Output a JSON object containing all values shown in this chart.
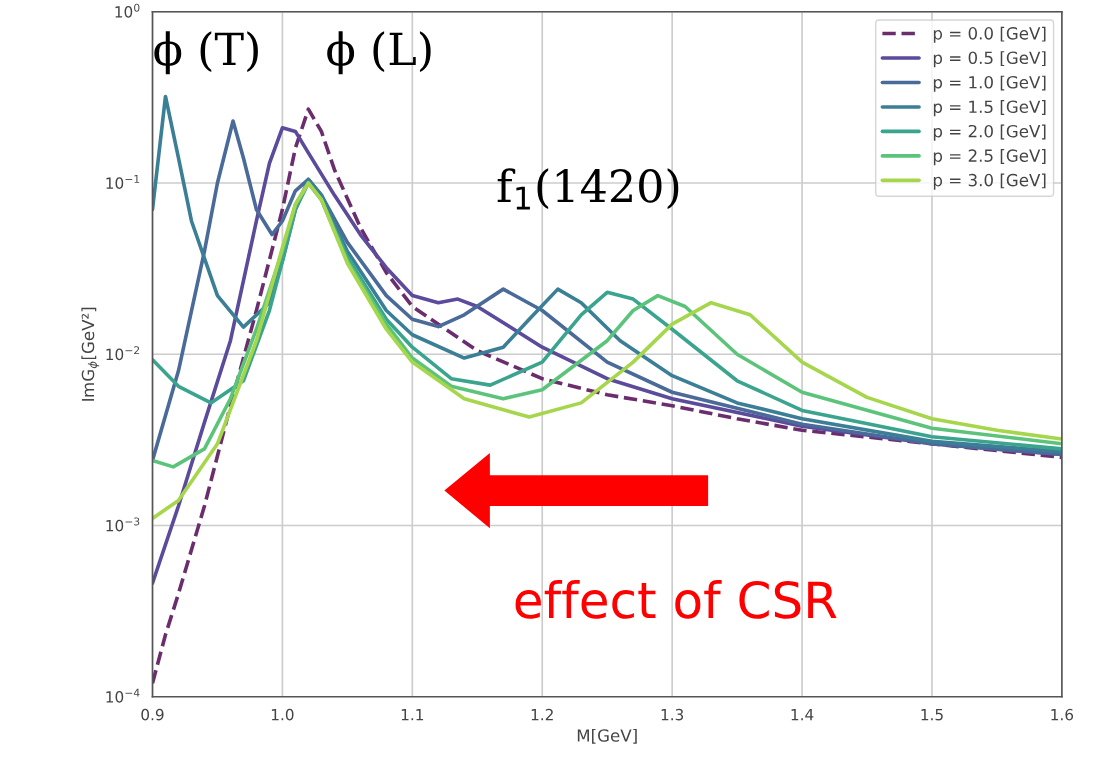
{
  "chart_data": {
    "type": "line",
    "xlabel": "M[GeV]",
    "ylabel": "ImG$_{ϕ}$[GeV²]",
    "log": "y",
    "grid": true,
    "legend": "top right",
    "line_style": "solid",
    "marker": "none",
    "xlim": [
      0.9,
      1.6
    ],
    "xticks": [
      0.9,
      {
        "value": 1.0,
        "label": "1.0"
      },
      1.1,
      1.2,
      1.3,
      1.4,
      1.5,
      1.6
    ],
    "ylim": [
      0.0001,
      1
    ],
    "yticks": [
      {
        "value": 0.0001,
        "label": "10$^{−4}$"
      },
      {
        "value": 0.001,
        "label": "10$^{−3}$"
      },
      {
        "value": 0.01,
        "label": "10$^{−2}$"
      },
      {
        "value": 0.1,
        "label": "10$^{−1}$"
      },
      {
        "value": 1,
        "label": "10$^{0}$"
      }
    ],
    "series": [
      {
        "name": "p = 0.0 [GeV]",
        "color": "#6b2d6e",
        "line_style": "dashed",
        "x": [
          0.9,
          0.91,
          0.92,
          0.94,
          0.96,
          0.98,
          1.0,
          1.01,
          1.02,
          1.03,
          1.04,
          1.06,
          1.08,
          1.1,
          1.15,
          1.2,
          1.25,
          1.3,
          1.35,
          1.4,
          1.5,
          1.6
        ],
        "values": [
          0.00012,
          0.00023,
          0.0004,
          0.0013,
          0.005,
          0.018,
          0.07,
          0.16,
          0.27,
          0.2,
          0.12,
          0.055,
          0.03,
          0.019,
          0.0105,
          0.0072,
          0.0058,
          0.005,
          0.0042,
          0.0036,
          0.003,
          0.0025
        ]
      },
      {
        "name": "p = 0.5 [GeV]",
        "color": "#5c4a9b",
        "x": [
          0.9,
          0.92,
          0.94,
          0.96,
          0.98,
          0.99,
          1.0,
          1.01,
          1.02,
          1.04,
          1.06,
          1.08,
          1.1,
          1.12,
          1.135,
          1.15,
          1.2,
          1.25,
          1.3,
          1.4,
          1.5,
          1.6
        ],
        "values": [
          0.00046,
          0.0013,
          0.004,
          0.012,
          0.06,
          0.13,
          0.21,
          0.2,
          0.15,
          0.085,
          0.05,
          0.032,
          0.022,
          0.02,
          0.021,
          0.019,
          0.011,
          0.0072,
          0.0055,
          0.0038,
          0.003,
          0.0026
        ]
      },
      {
        "name": "p = 1.0 [GeV]",
        "color": "#4a6a9a",
        "x": [
          0.9,
          0.92,
          0.94,
          0.95,
          0.962,
          0.97,
          0.98,
          0.992,
          1.0,
          1.01,
          1.02,
          1.03,
          1.05,
          1.08,
          1.1,
          1.12,
          1.14,
          1.17,
          1.2,
          1.25,
          1.3,
          1.4,
          1.5,
          1.6
        ],
        "values": [
          0.0024,
          0.008,
          0.04,
          0.1,
          0.23,
          0.14,
          0.07,
          0.05,
          0.06,
          0.09,
          0.105,
          0.085,
          0.045,
          0.022,
          0.016,
          0.0145,
          0.017,
          0.024,
          0.018,
          0.009,
          0.006,
          0.0039,
          0.003,
          0.0026
        ]
      },
      {
        "name": "p = 1.5 [GeV]",
        "color": "#3a7f96",
        "x": [
          0.9,
          0.91,
          0.92,
          0.93,
          0.95,
          0.97,
          0.99,
          1.0,
          1.01,
          1.02,
          1.03,
          1.05,
          1.08,
          1.1,
          1.14,
          1.17,
          1.19,
          1.212,
          1.23,
          1.26,
          1.3,
          1.35,
          1.4,
          1.5,
          1.6
        ],
        "values": [
          0.07,
          0.32,
          0.14,
          0.06,
          0.022,
          0.0144,
          0.02,
          0.035,
          0.07,
          0.105,
          0.085,
          0.04,
          0.018,
          0.013,
          0.0095,
          0.011,
          0.016,
          0.024,
          0.02,
          0.012,
          0.0075,
          0.0052,
          0.0042,
          0.0031,
          0.0027
        ]
      },
      {
        "name": "p = 2.0 [GeV]",
        "color": "#3aa48f",
        "x": [
          0.9,
          0.92,
          0.945,
          0.97,
          0.99,
          1.0,
          1.01,
          1.02,
          1.03,
          1.05,
          1.08,
          1.1,
          1.13,
          1.16,
          1.2,
          1.23,
          1.25,
          1.27,
          1.3,
          1.35,
          1.4,
          1.5,
          1.6
        ],
        "values": [
          0.0093,
          0.0065,
          0.0052,
          0.007,
          0.018,
          0.035,
          0.07,
          0.1,
          0.08,
          0.037,
          0.016,
          0.011,
          0.0072,
          0.0066,
          0.009,
          0.017,
          0.023,
          0.021,
          0.014,
          0.007,
          0.0047,
          0.0033,
          0.0028
        ]
      },
      {
        "name": "p = 2.5 [GeV]",
        "color": "#5cc47a",
        "x": [
          0.9,
          0.916,
          0.94,
          0.96,
          0.98,
          1.0,
          1.01,
          1.02,
          1.03,
          1.05,
          1.08,
          1.1,
          1.13,
          1.17,
          1.2,
          1.25,
          1.27,
          1.289,
          1.31,
          1.35,
          1.4,
          1.5,
          1.6
        ],
        "values": [
          0.0024,
          0.0022,
          0.0028,
          0.0055,
          0.014,
          0.04,
          0.075,
          0.1,
          0.08,
          0.035,
          0.015,
          0.0095,
          0.0065,
          0.0055,
          0.0062,
          0.012,
          0.018,
          0.022,
          0.019,
          0.01,
          0.006,
          0.0037,
          0.003
        ]
      },
      {
        "name": "p = 3.0 [GeV]",
        "color": "#a6d64c",
        "x": [
          0.9,
          0.92,
          0.95,
          0.98,
          1.0,
          1.01,
          1.02,
          1.03,
          1.05,
          1.08,
          1.1,
          1.14,
          1.19,
          1.23,
          1.27,
          1.3,
          1.33,
          1.36,
          1.4,
          1.45,
          1.5,
          1.55,
          1.6
        ],
        "values": [
          0.0011,
          0.0014,
          0.003,
          0.012,
          0.042,
          0.075,
          0.1,
          0.08,
          0.034,
          0.014,
          0.009,
          0.0055,
          0.0043,
          0.0052,
          0.009,
          0.015,
          0.02,
          0.017,
          0.009,
          0.0056,
          0.0042,
          0.0036,
          0.0032
        ]
      }
    ],
    "annotations": [
      "ϕ (T)",
      "ϕ (L)",
      "f$_{1}$(1420)",
      "effect of CSR"
    ]
  }
}
